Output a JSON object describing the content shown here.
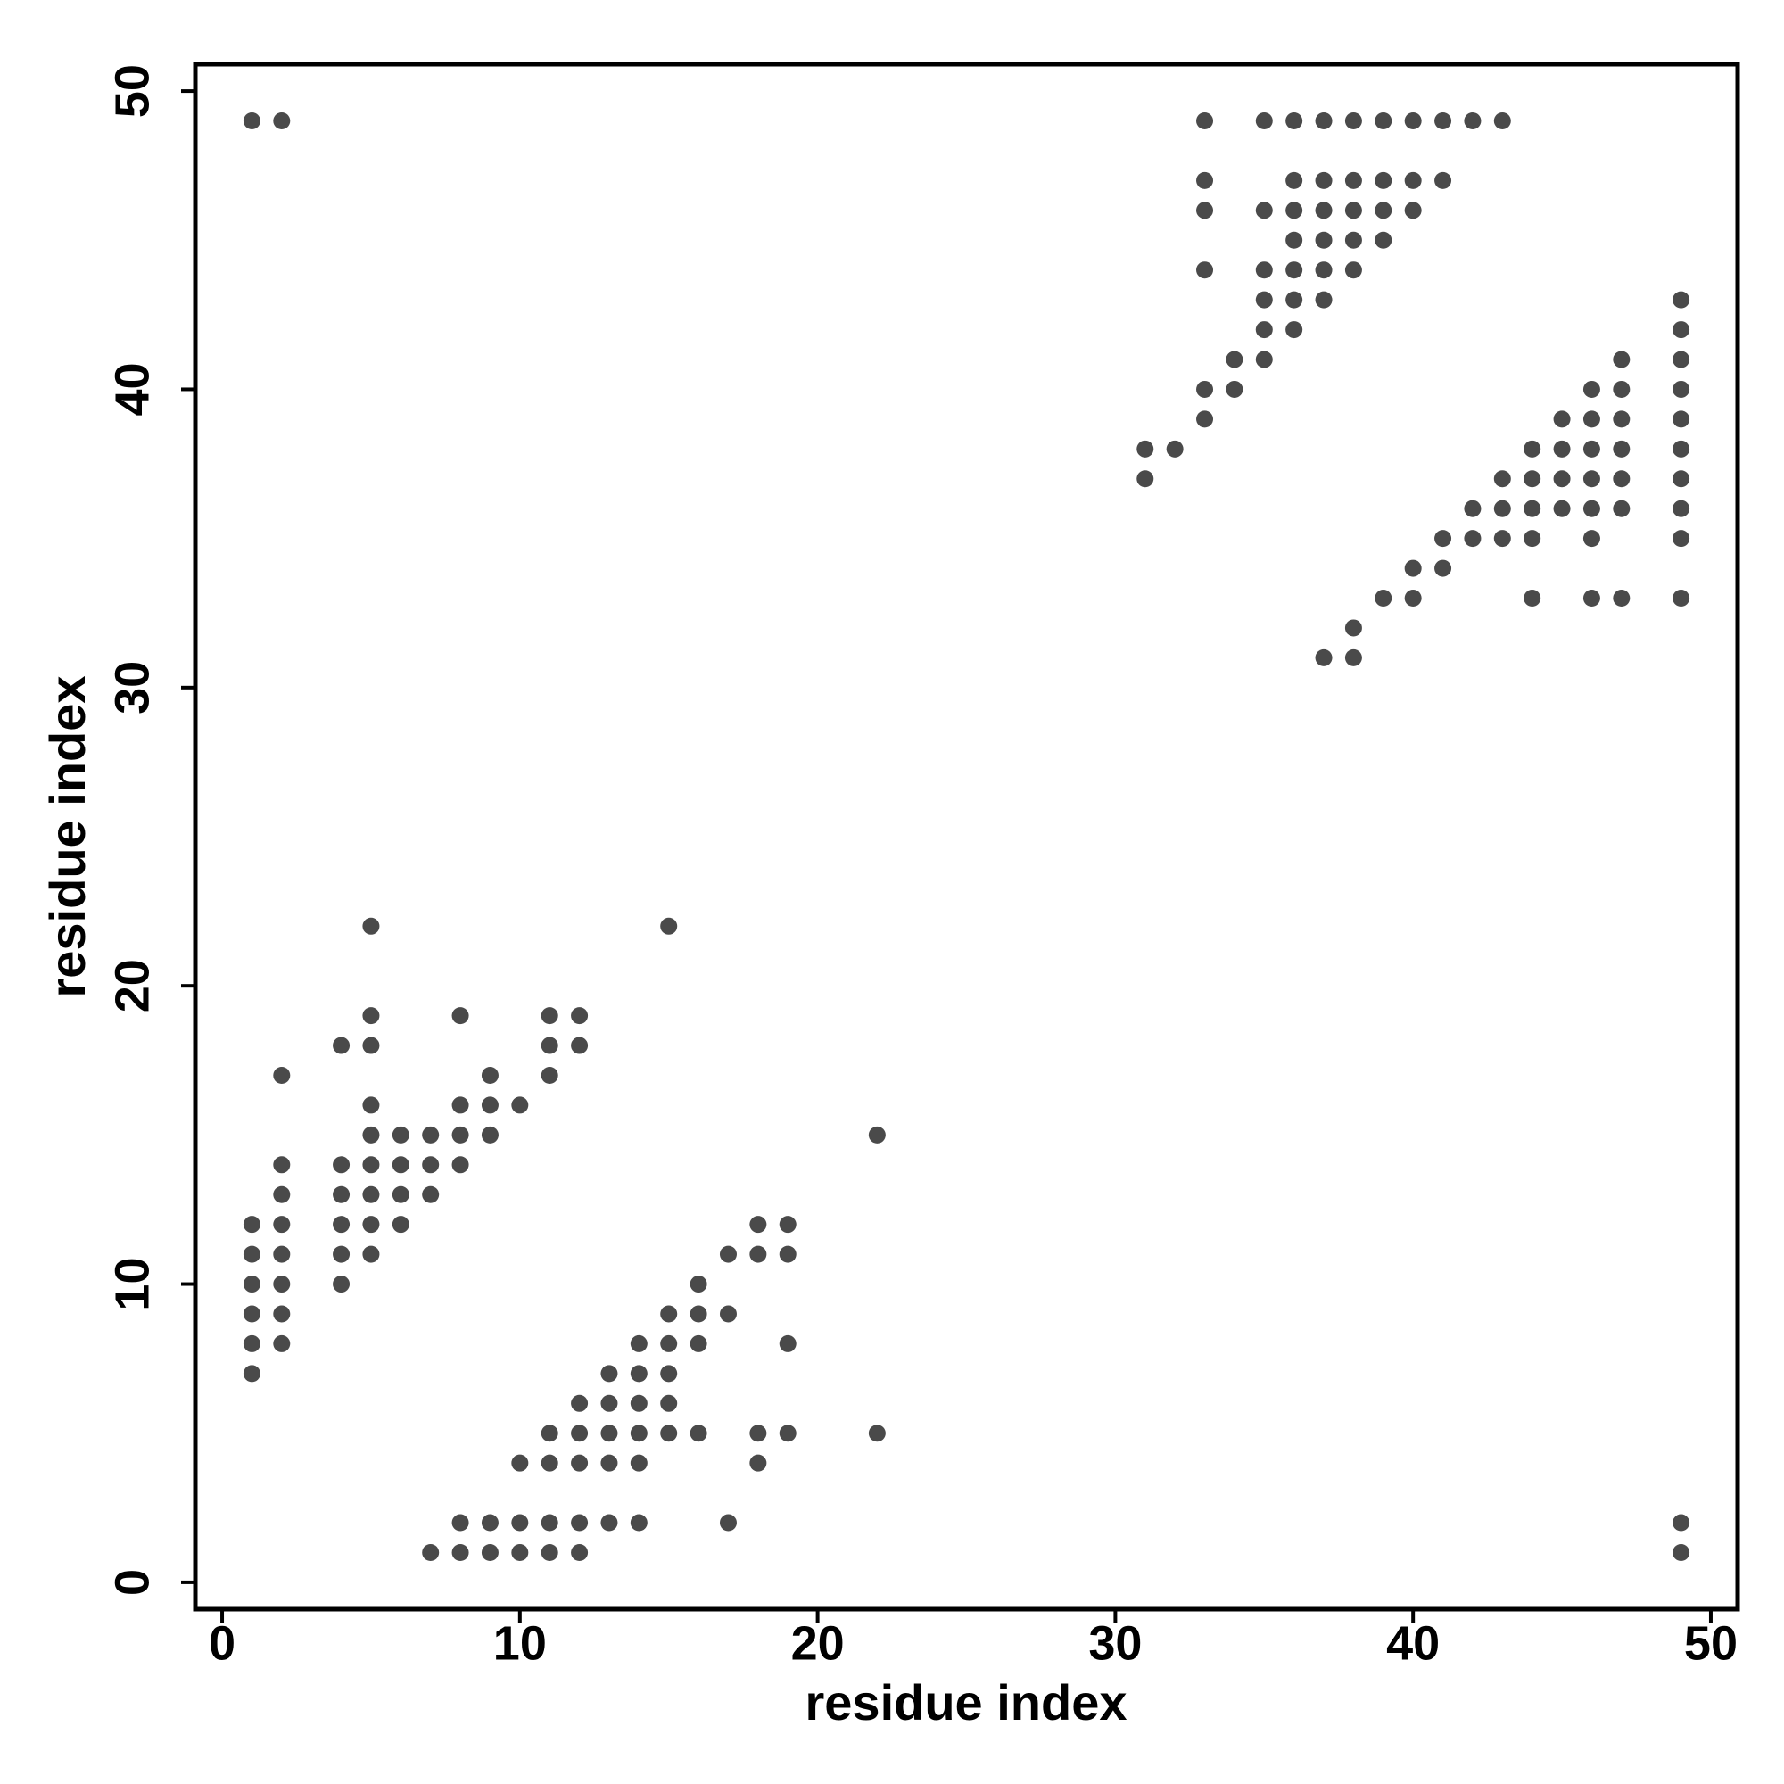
{
  "chart_data": {
    "type": "scatter",
    "x_label": "residue index",
    "y_label": "residue index",
    "color": "#4a4a4a",
    "x": [
      1,
      2,
      33,
      35,
      36,
      37,
      38,
      39,
      40,
      41,
      42,
      43,
      33,
      36,
      37,
      38,
      39,
      40,
      41,
      33,
      35,
      36,
      37,
      38,
      39,
      40,
      36,
      37,
      38,
      39,
      33,
      35,
      36,
      37,
      38,
      35,
      36,
      37,
      49,
      35,
      36,
      49,
      34,
      35,
      47,
      49,
      33,
      34,
      46,
      47,
      49,
      33,
      45,
      46,
      47,
      49,
      31,
      32,
      44,
      45,
      46,
      47,
      49,
      31,
      43,
      44,
      45,
      46,
      47,
      49,
      42,
      43,
      44,
      45,
      46,
      47,
      49,
      41,
      42,
      43,
      44,
      46,
      49,
      40,
      41,
      39,
      40,
      44,
      46,
      47,
      49,
      38,
      37,
      38,
      5,
      15,
      5,
      8,
      11,
      12,
      4,
      5,
      11,
      12,
      2,
      9,
      11,
      5,
      8,
      9,
      10,
      5,
      6,
      7,
      8,
      9,
      22,
      2,
      4,
      5,
      6,
      7,
      8,
      2,
      4,
      5,
      6,
      7,
      1,
      2,
      4,
      5,
      6,
      18,
      19,
      1,
      2,
      4,
      5,
      17,
      18,
      19,
      1,
      2,
      4,
      16,
      1,
      2,
      15,
      16,
      17,
      1,
      2,
      14,
      15,
      16,
      19,
      1,
      13,
      14,
      15,
      12,
      13,
      14,
      15,
      11,
      12,
      13,
      14,
      15,
      16,
      18,
      19,
      22,
      10,
      11,
      12,
      13,
      14,
      18,
      8,
      9,
      10,
      11,
      12,
      13,
      14,
      17,
      49,
      7,
      8,
      9,
      10,
      11,
      12,
      49
    ],
    "y": [
      49,
      49,
      49,
      49,
      49,
      49,
      49,
      49,
      49,
      49,
      49,
      49,
      47,
      47,
      47,
      47,
      47,
      47,
      47,
      46,
      46,
      46,
      46,
      46,
      46,
      46,
      45,
      45,
      45,
      45,
      44,
      44,
      44,
      44,
      44,
      43,
      43,
      43,
      43,
      42,
      42,
      42,
      41,
      41,
      41,
      41,
      40,
      40,
      40,
      40,
      40,
      39,
      39,
      39,
      39,
      39,
      38,
      38,
      38,
      38,
      38,
      38,
      38,
      37,
      37,
      37,
      37,
      37,
      37,
      37,
      36,
      36,
      36,
      36,
      36,
      36,
      36,
      35,
      35,
      35,
      35,
      35,
      35,
      34,
      34,
      33,
      33,
      33,
      33,
      33,
      33,
      32,
      31,
      31,
      22,
      22,
      19,
      19,
      19,
      19,
      18,
      18,
      18,
      18,
      17,
      17,
      17,
      16,
      16,
      16,
      16,
      15,
      15,
      15,
      15,
      15,
      15,
      14,
      14,
      14,
      14,
      14,
      14,
      13,
      13,
      13,
      13,
      13,
      12,
      12,
      12,
      12,
      12,
      12,
      12,
      11,
      11,
      11,
      11,
      11,
      11,
      11,
      10,
      10,
      10,
      10,
      9,
      9,
      9,
      9,
      9,
      8,
      8,
      8,
      8,
      8,
      8,
      7,
      7,
      7,
      7,
      6,
      6,
      6,
      6,
      5,
      5,
      5,
      5,
      5,
      5,
      5,
      5,
      5,
      4,
      4,
      4,
      4,
      4,
      4,
      2,
      2,
      2,
      2,
      2,
      2,
      2,
      2,
      2,
      1,
      1,
      1,
      1,
      1,
      1,
      1
    ],
    "xlim": [
      -0.9,
      50.9
    ],
    "ylim": [
      -0.9,
      50.9
    ],
    "xticks": [
      0,
      10,
      20,
      30,
      40,
      50
    ],
    "yticks": [
      0,
      10,
      20,
      30,
      40,
      50
    ]
  }
}
